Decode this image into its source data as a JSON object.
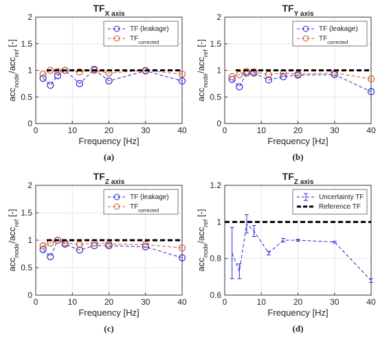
{
  "chart_data": [
    {
      "type": "line",
      "panel_label": "(a)",
      "title": [
        "TF",
        "X axis"
      ],
      "xlabel": "Frequency [Hz]",
      "ylabel": [
        "acc",
        "node",
        "/acc",
        "ref",
        " [-]"
      ],
      "xlim": [
        0,
        40
      ],
      "xticks": [
        0,
        10,
        20,
        30,
        40
      ],
      "ylim": [
        0,
        2
      ],
      "yticks": [
        0,
        0.5,
        1,
        1.5,
        2
      ],
      "grid": true,
      "legend": "upper right",
      "x": [
        2,
        4,
        6,
        8,
        12,
        16,
        20,
        30,
        40
      ],
      "series": [
        {
          "name": "TF (leakage)",
          "color": "#2424d6",
          "marker": "circle",
          "values": [
            0.85,
            0.72,
            0.9,
            1.0,
            0.75,
            1.02,
            0.8,
            0.99,
            0.8
          ]
        },
        {
          "name": [
            "TF",
            "corrected"
          ],
          "color": "#d2542b",
          "marker": "circle",
          "values": [
            0.93,
            1.0,
            0.98,
            1.0,
            0.97,
            1.0,
            0.95,
            1.0,
            0.93
          ]
        },
        {
          "color": "#000000",
          "marker": "none",
          "width": 3,
          "x": [
            3,
            40
          ],
          "values": [
            1,
            1
          ]
        }
      ]
    },
    {
      "type": "line",
      "panel_label": "(b)",
      "title": [
        "TF",
        "Y axis"
      ],
      "xlabel": "Frequency [Hz]",
      "ylabel": [
        "acc",
        "node",
        "/acc",
        "ref",
        " [-]"
      ],
      "xlim": [
        0,
        40
      ],
      "xticks": [
        0,
        10,
        20,
        30,
        40
      ],
      "ylim": [
        0,
        2
      ],
      "yticks": [
        0,
        0.5,
        1,
        1.5,
        2
      ],
      "grid": true,
      "legend": "upper right",
      "x": [
        2,
        4,
        6,
        8,
        12,
        16,
        20,
        30,
        40
      ],
      "series": [
        {
          "name": "TF (leakage)",
          "color": "#2424d6",
          "marker": "circle",
          "values": [
            0.83,
            0.69,
            0.95,
            0.95,
            0.82,
            0.88,
            0.91,
            0.92,
            0.6
          ]
        },
        {
          "name": [
            "TF",
            "corrected"
          ],
          "color": "#d2542b",
          "marker": "circle",
          "values": [
            0.88,
            0.92,
            0.98,
            0.97,
            0.92,
            0.95,
            0.93,
            0.95,
            0.84
          ]
        },
        {
          "color": "#000000",
          "marker": "none",
          "width": 3,
          "x": [
            3,
            40
          ],
          "values": [
            1,
            1
          ]
        }
      ]
    },
    {
      "type": "line",
      "panel_label": "(c)",
      "title": [
        "TF",
        "Z axis"
      ],
      "xlabel": "Frequency [Hz]",
      "ylabel": [
        "acc",
        "node",
        "/acc",
        "ref",
        " [-]"
      ],
      "xlim": [
        0,
        40
      ],
      "xticks": [
        0,
        10,
        20,
        30,
        40
      ],
      "ylim": [
        0,
        2
      ],
      "yticks": [
        0,
        0.5,
        1,
        1.5,
        2
      ],
      "grid": true,
      "legend": "upper right",
      "x": [
        2,
        4,
        6,
        8,
        12,
        16,
        20,
        30,
        40
      ],
      "series": [
        {
          "name": "TF (leakage)",
          "color": "#2424d6",
          "marker": "circle",
          "values": [
            0.83,
            0.7,
            1.0,
            0.93,
            0.82,
            0.9,
            0.9,
            0.88,
            0.68
          ]
        },
        {
          "name": [
            "TF",
            "corrected"
          ],
          "color": "#d2542b",
          "marker": "circle",
          "values": [
            0.9,
            0.95,
            1.0,
            0.95,
            0.92,
            0.95,
            0.93,
            0.92,
            0.86
          ]
        },
        {
          "color": "#000000",
          "marker": "none",
          "width": 3,
          "x": [
            3,
            40
          ],
          "values": [
            1,
            1
          ]
        }
      ]
    },
    {
      "type": "errorbar",
      "panel_label": "(d)",
      "title": [
        "TF",
        "Z axis"
      ],
      "xlabel": "Frequency [Hz]",
      "ylabel": [
        "acc",
        "node",
        "/acc",
        "ref",
        " [-]"
      ],
      "xlim": [
        0,
        40
      ],
      "xticks": [
        0,
        10,
        20,
        30,
        40
      ],
      "ylim": [
        0.6,
        1.2
      ],
      "yticks": [
        0.6,
        0.8,
        1,
        1.2
      ],
      "grid": true,
      "legend": "upper right",
      "x": [
        2,
        4,
        6,
        8,
        12,
        16,
        20,
        30,
        40
      ],
      "series": [
        {
          "name": "Uncertainty TF",
          "color": "#2424d6",
          "marker": "errorbar",
          "values": [
            0.83,
            0.73,
            0.99,
            0.95,
            0.83,
            0.9,
            0.9,
            0.89,
            0.68
          ],
          "errors": [
            0.14,
            0.04,
            0.05,
            0.03,
            0.01,
            0.01,
            0.005,
            0.005,
            0.01
          ]
        },
        {
          "name": "Reference TF",
          "color": "#000000",
          "marker": "none",
          "width": 3,
          "x": [
            0,
            40
          ],
          "values": [
            1,
            1
          ]
        }
      ]
    }
  ]
}
